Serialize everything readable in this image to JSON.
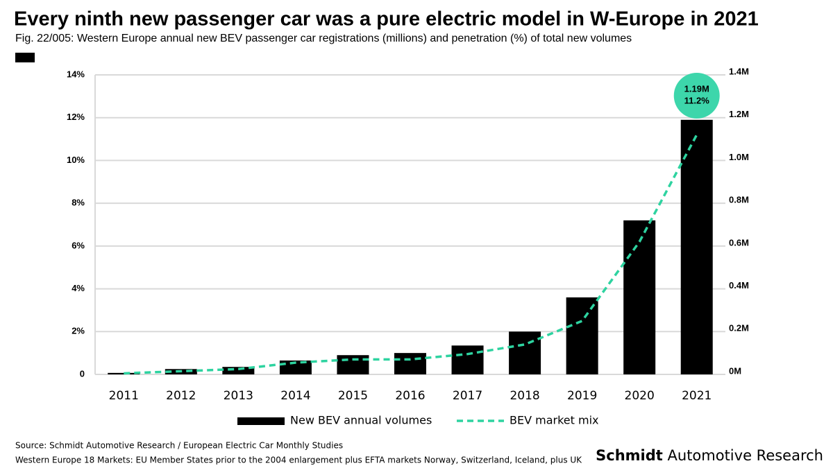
{
  "chart_data": {
    "type": "bar_line",
    "title": "Every ninth new passenger car was a pure electric model in W-Europe in 2021",
    "subtitle": "Fig. 22/005: Western Europe annual new BEV passenger car registrations (millions) and penetration (%) of total new volumes",
    "categories": [
      "2011",
      "2012",
      "2013",
      "2014",
      "2015",
      "2016",
      "2017",
      "2018",
      "2019",
      "2020",
      "2021"
    ],
    "series": [
      {
        "name": "New BEV annual volumes",
        "color": "#000000",
        "axis": "y2",
        "values": [
          0.007,
          0.025,
          0.035,
          0.065,
          0.09,
          0.1,
          0.135,
          0.2,
          0.36,
          0.72,
          1.19
        ],
        "value_labels": [
          null,
          null,
          null,
          null,
          null,
          null,
          null,
          null,
          null,
          null,
          "1.19M"
        ]
      },
      {
        "name": "BEV market mix",
        "color": "#2ed3a0",
        "axis": "y",
        "values": [
          0.05,
          0.15,
          0.25,
          0.55,
          0.7,
          0.7,
          0.95,
          1.4,
          2.5,
          6.2,
          11.2
        ],
        "value_labels": [
          null,
          null,
          null,
          null,
          null,
          null,
          null,
          null,
          null,
          null,
          "11.2%"
        ]
      }
    ],
    "ylim": [
      0,
      14
    ],
    "yticks": [
      0,
      {
        "value": 2,
        "label": "2%"
      },
      {
        "value": 4,
        "label": "4%"
      },
      {
        "value": 6,
        "label": "6%"
      },
      {
        "value": 8,
        "label": "8%"
      },
      {
        "value": 10,
        "label": "10%"
      },
      {
        "value": 12,
        "label": "12%"
      },
      {
        "value": 14,
        "label": "14%"
      }
    ],
    "y2lim": [
      0,
      1.4
    ],
    "y2ticks": [
      {
        "value": 0,
        "label": "0M"
      },
      {
        "value": 0.2,
        "label": "0.2M"
      },
      {
        "value": 0.4,
        "label": "0.4M"
      },
      {
        "value": 0.6,
        "label": "0.6M"
      },
      {
        "value": 0.8,
        "label": "0.8M"
      },
      {
        "value": 1.0,
        "label": "1.0M"
      },
      {
        "value": 1.2,
        "label": "1.2M"
      },
      {
        "value": 1.4,
        "label": "1.4M"
      }
    ],
    "grid": true,
    "legend": "bottom",
    "source": "Source: Schmidt Automotive Research / European Electric Car Monthly Studies",
    "footnote": "Western Europe 18 Markets: EU Member States prior to the 2004 enlargement plus EFTA markets Norway, Switzerland, Iceland, plus UK",
    "brand": {
      "bold": "Schmidt",
      "rest": "Automotive Research"
    }
  }
}
